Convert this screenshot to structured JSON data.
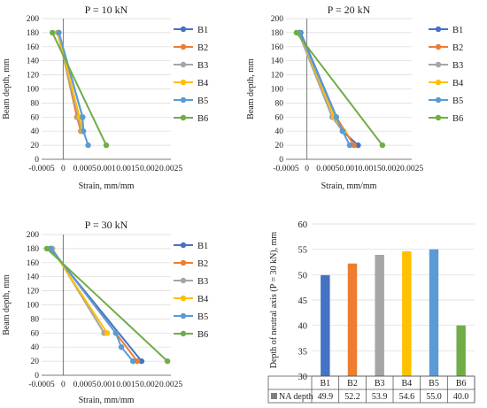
{
  "colors": {
    "B1": "#4472c4",
    "B2": "#ed7d31",
    "B3": "#a5a5a5",
    "B4": "#ffc000",
    "B5": "#5b9bd5",
    "B6": "#70ad47",
    "grid": "#d9d9d9",
    "axis": "#595959"
  },
  "chart_data": [
    {
      "type": "line",
      "title": "P = 10 kN",
      "xlabel": "Strain, mm/mm",
      "ylabel": "Beam depth, mm",
      "xlim": [
        -0.0005,
        0.0025
      ],
      "ylim": [
        0,
        200
      ],
      "xticks": [
        "-0.0005",
        "0",
        "0.0005",
        "0.001",
        "0.0015",
        "0.002",
        "0.0025"
      ],
      "yticks": [
        "0",
        "20",
        "40",
        "60",
        "80",
        "100",
        "120",
        "140",
        "160",
        "180",
        "200"
      ],
      "legend": "right",
      "series": [
        {
          "name": "B1",
          "x": [
            -0.0001,
            0.00045,
            0.00046
          ],
          "y": [
            180,
            60,
            40
          ]
        },
        {
          "name": "B2",
          "x": [
            -0.00012,
            0.00032,
            0.00041
          ],
          "y": [
            180,
            60,
            40
          ]
        },
        {
          "name": "B3",
          "x": [
            -0.00013,
            0.00035,
            0.00043
          ],
          "y": [
            180,
            60,
            40
          ]
        },
        {
          "name": "B4",
          "x": [
            -0.00012,
            0.00038,
            0.00045
          ],
          "y": [
            180,
            60,
            40
          ]
        },
        {
          "name": "B5",
          "x": [
            -0.0001,
            0.00045,
            0.00047,
            0.00058
          ],
          "y": [
            180,
            60,
            40,
            20
          ]
        },
        {
          "name": "B6",
          "x": [
            -0.00025,
            0.001
          ],
          "y": [
            180,
            20
          ]
        }
      ]
    },
    {
      "type": "line",
      "title": "P = 20 kN",
      "xlabel": "Strain, mm/mm",
      "ylabel": "Beam depth, mm",
      "xlim": [
        -0.0005,
        0.0025
      ],
      "ylim": [
        0,
        200
      ],
      "xticks": [
        "-0.0005",
        "0",
        "0.0005",
        "0.001",
        "0.0015",
        "0.002",
        "0.0025"
      ],
      "yticks": [
        "0",
        "20",
        "40",
        "60",
        "80",
        "100",
        "120",
        "140",
        "160",
        "180",
        "200"
      ],
      "legend": "right",
      "series": [
        {
          "name": "B1",
          "x": [
            -0.00015,
            0.00085,
            0.00122
          ],
          "y": [
            180,
            40,
            20
          ]
        },
        {
          "name": "B2",
          "x": [
            -0.00018,
            0.0007,
            0.00112
          ],
          "y": [
            180,
            60,
            20
          ]
        },
        {
          "name": "B3",
          "x": [
            -0.0002,
            0.0006,
            0.00085
          ],
          "y": [
            180,
            60,
            40
          ]
        },
        {
          "name": "B4",
          "x": [
            -0.00018,
            0.00065,
            0.00088
          ],
          "y": [
            180,
            60,
            40
          ]
        },
        {
          "name": "B5",
          "x": [
            -0.00017,
            0.0007,
            0.00085,
            0.00102
          ],
          "y": [
            180,
            60,
            40,
            20
          ]
        },
        {
          "name": "B6",
          "x": [
            -0.00025,
            0.0018
          ],
          "y": [
            180,
            20
          ]
        }
      ]
    },
    {
      "type": "line",
      "title": "P = 30 kN",
      "xlabel": "Strain, mm/mm",
      "ylabel": "Beam depth, mm",
      "xlim": [
        -0.0005,
        0.0025
      ],
      "ylim": [
        0,
        200
      ],
      "xticks": [
        "-0.0005",
        "0",
        "0.0005",
        "0.001",
        "0.0015",
        "0.002",
        "0.0025"
      ],
      "yticks": [
        "0",
        "20",
        "40",
        "60",
        "80",
        "100",
        "120",
        "140",
        "160",
        "180",
        "200"
      ],
      "legend": "right",
      "series": [
        {
          "name": "B1",
          "x": [
            -0.0003,
            0.00182
          ],
          "y": [
            180,
            20
          ]
        },
        {
          "name": "B2",
          "x": [
            -0.00028,
            0.00172
          ],
          "y": [
            180,
            20
          ]
        },
        {
          "name": "B3",
          "x": [
            -0.00025,
            0.00095
          ],
          "y": [
            180,
            60
          ]
        },
        {
          "name": "B4",
          "x": [
            -0.00027,
            0.00102
          ],
          "y": [
            180,
            60
          ]
        },
        {
          "name": "B5",
          "x": [
            -0.00028,
            0.00122,
            0.00135,
            0.00162
          ],
          "y": [
            180,
            60,
            40,
            20
          ]
        },
        {
          "name": "B6",
          "x": [
            -0.00038,
            0.00242
          ],
          "y": [
            180,
            20
          ]
        }
      ]
    },
    {
      "type": "bar",
      "title": "",
      "xlabel": "",
      "ylabel": "Depth of neutral axis (P = 30 kN), mm",
      "ylim": [
        30,
        60
      ],
      "yticks": [
        "30",
        "35",
        "40",
        "45",
        "50",
        "55",
        "60"
      ],
      "categories": [
        "B1",
        "B2",
        "B3",
        "B4",
        "B5",
        "B6"
      ],
      "series": [
        {
          "name": "NA depth",
          "values": [
            49.9,
            52.2,
            53.9,
            54.6,
            55.0,
            40.0
          ],
          "labels": [
            "49.9",
            "52.2",
            "53.9",
            "54.6",
            "55.0",
            "40.0"
          ]
        }
      ]
    }
  ]
}
